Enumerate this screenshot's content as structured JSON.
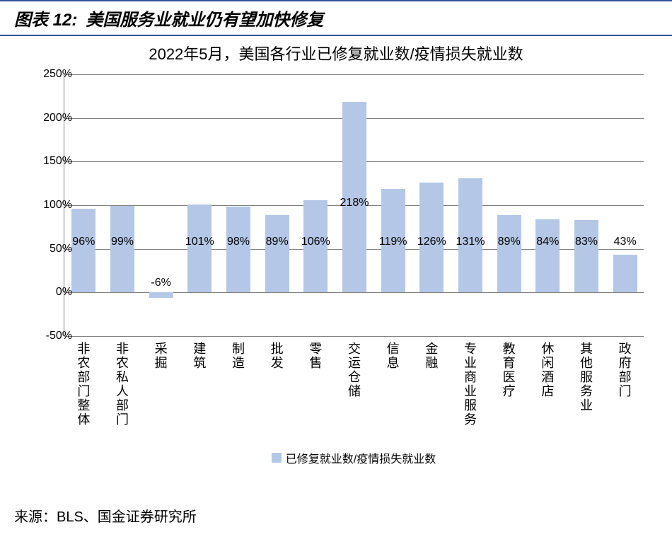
{
  "header": {
    "label": "图表 12:",
    "title": "美国服务业就业仍有望加快修复"
  },
  "subtitle": "2022年5月，美国各行业已修复就业数/疫情损失就业数",
  "chart": {
    "type": "bar",
    "ylim": [
      -50,
      250
    ],
    "ytick_step": 50,
    "yticks": [
      -50,
      0,
      50,
      100,
      150,
      200,
      250
    ],
    "bar_color": "#b4c7e7",
    "grid_color": "#808080",
    "background_color": "#ffffff",
    "axis_font_size": 16,
    "xlabel_font_size": 18,
    "categories": [
      "非农部门整体",
      "非农私人部门",
      "采掘",
      "建筑",
      "制造",
      "批发",
      "零售",
      "交运仓储",
      "信息",
      "金融",
      "专业商业服务",
      "教育医疗",
      "休闲酒店",
      "其他服务业",
      "政府部门"
    ],
    "values": [
      96,
      99,
      -6,
      101,
      98,
      89,
      106,
      218,
      119,
      126,
      131,
      89,
      84,
      83,
      43
    ],
    "value_labels": [
      "96%",
      "99%",
      "-6%",
      "101%",
      "98%",
      "89%",
      "106%",
      "218%",
      "119%",
      "126%",
      "131%",
      "89%",
      "84%",
      "83%",
      "43%"
    ],
    "legend": "已修复就业数/疫情损失就业数"
  },
  "source": "来源：BLS、国金证券研究所"
}
